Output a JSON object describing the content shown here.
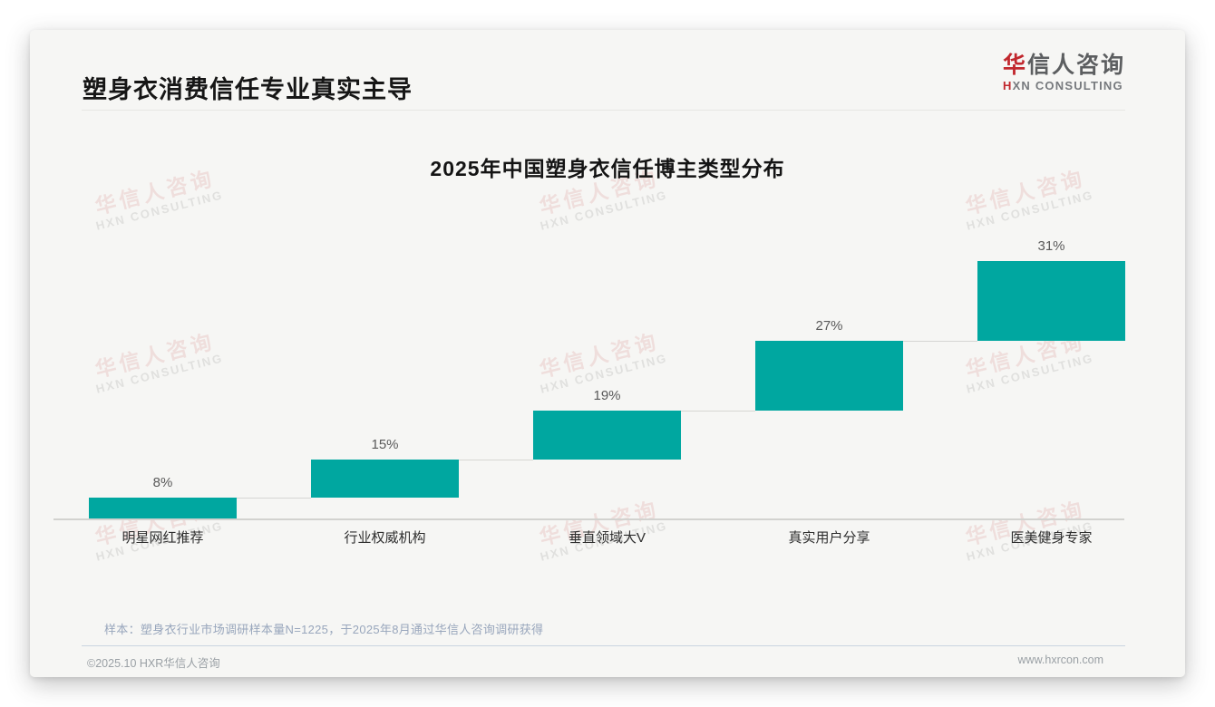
{
  "header": {
    "title": "塑身衣消费信任专业真实主导",
    "logo": {
      "cn_first": "华",
      "cn_rest": "信人咨询",
      "en_first": "H",
      "en_rest": "XN CONSULTING",
      "brand_red": "#C1272D"
    }
  },
  "chart_data": {
    "type": "bar",
    "subtype": "waterfall-step",
    "title": "2025年中国塑身衣信任博主类型分布",
    "categories": [
      "明星网红推荐",
      "行业权威机构",
      "垂直领域大V",
      "真实用户分享",
      "医美健身专家"
    ],
    "values": [
      8,
      15,
      19,
      27,
      31
    ],
    "data_labels": [
      "8%",
      "15%",
      "19%",
      "27%",
      "31%"
    ],
    "cumulative": [
      8,
      23,
      42,
      69,
      100
    ],
    "unit": "%",
    "ylim": [
      0,
      100
    ],
    "bar_color": "#00A7A0",
    "grid": false,
    "legend": false
  },
  "watermark": {
    "cn": "华信人咨询",
    "en": "HXN CONSULTING"
  },
  "footnote": {
    "sample_note": "样本：塑身衣行业市场调研样本量N=1225，于2025年8月通过华信人咨询调研获得"
  },
  "footer": {
    "copyright": "©2025.10 HXR华信人咨询",
    "website": "www.hxrcon.com"
  }
}
